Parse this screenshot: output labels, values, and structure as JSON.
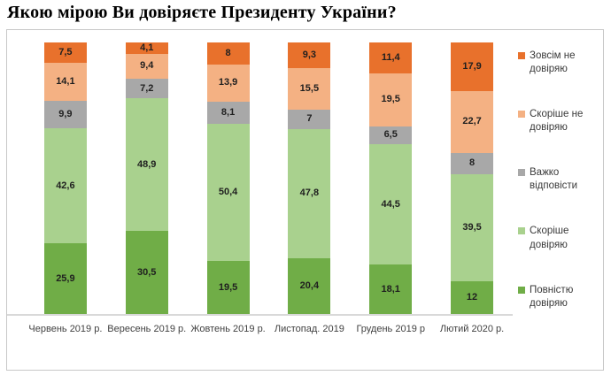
{
  "title": "Якою мірою Ви довіряєте Президенту України?",
  "colors": {
    "strong_distrust": "#e8712c",
    "rather_distrust": "#f4b183",
    "hard_to_say": "#a8a8a8",
    "rather_trust": "#a9d18e",
    "full_trust": "#70ad47",
    "frame_border": "#c8c8c8",
    "baseline": "#d9d9d9"
  },
  "chart_data": {
    "type": "bar",
    "stacked": true,
    "percent_stacked": true,
    "title": "Якою мірою Ви довіряєте Президенту України?",
    "xlabel": "",
    "ylabel": "",
    "ylim": [
      0,
      100
    ],
    "grid": false,
    "legend_position": "right",
    "categories": [
      "Червень 2019 р.",
      "Вересень 2019 р.",
      "Жовтень 2019 р.",
      "Листопад. 2019",
      "Грудень 2019 р",
      "Лютий 2020 р."
    ],
    "series": [
      {
        "name": "Зовсім не довіряю",
        "color": "#e8712c",
        "values": [
          7.5,
          4.1,
          8,
          9.3,
          11.4,
          17.9
        ],
        "labels": [
          "7,5",
          "4,1",
          "8",
          "9,3",
          "11,4",
          "17,9"
        ]
      },
      {
        "name": "Скоріше не довіряю",
        "color": "#f4b183",
        "values": [
          14.1,
          9.4,
          13.9,
          15.5,
          19.5,
          22.7
        ],
        "labels": [
          "14,1",
          "9,4",
          "13,9",
          "15,5",
          "19,5",
          "22,7"
        ]
      },
      {
        "name": "Важко відповісти",
        "color": "#a8a8a8",
        "values": [
          9.9,
          7.2,
          8.1,
          7,
          6.5,
          8
        ],
        "labels": [
          "9,9",
          "7,2",
          "8,1",
          "7",
          "6,5",
          "8"
        ]
      },
      {
        "name": "Скоріше довіряю",
        "color": "#a9d18e",
        "values": [
          42.6,
          48.9,
          50.4,
          47.8,
          44.5,
          39.5
        ],
        "labels": [
          "42,6",
          "48,9",
          "50,4",
          "47,8",
          "44,5",
          "39,5"
        ]
      },
      {
        "name": "Повністю довіряю",
        "color": "#70ad47",
        "values": [
          25.9,
          30.5,
          19.5,
          20.4,
          18.1,
          12
        ],
        "labels": [
          "25,9",
          "30,5",
          "19,5",
          "20,4",
          "18,1",
          "12"
        ]
      }
    ]
  }
}
